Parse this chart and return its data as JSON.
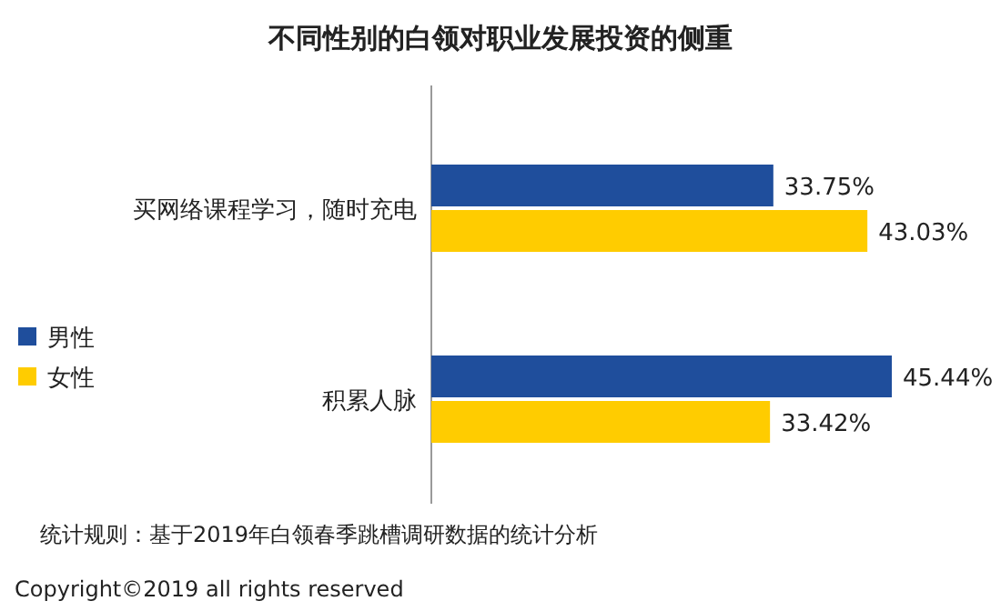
{
  "chart_data": {
    "type": "bar",
    "orientation": "horizontal",
    "title": "不同性别的白领对职业发展投资的侧重",
    "categories": [
      "买网络课程学习，随时充电",
      "积累人脉"
    ],
    "series": [
      {
        "name": "男性",
        "color": "#1f4e9c",
        "values": [
          33.75,
          45.44
        ],
        "value_labels": [
          "33.75%",
          "45.44%"
        ]
      },
      {
        "name": "女性",
        "color": "#ffcc00",
        "values": [
          43.03,
          33.42
        ],
        "value_labels": [
          "43.03%",
          "33.42%"
        ]
      }
    ],
    "legend": "left",
    "annotations": [
      "统计规则：基于2019年白领春季跳槽调研数据的统计分析",
      "Copyright©2019 all rights reserved"
    ]
  }
}
